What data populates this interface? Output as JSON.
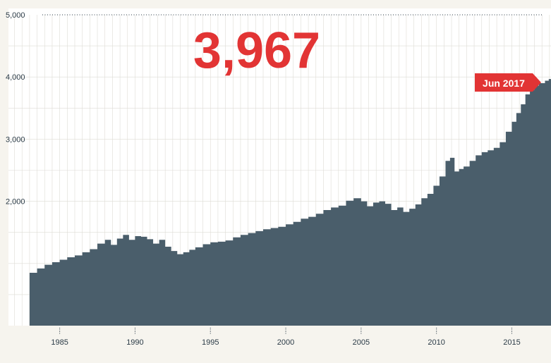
{
  "headline": "3,967",
  "badge_label": "Jun 2017",
  "colors": {
    "area": "#4a5e6b",
    "accent": "#e23434",
    "grid": "#dedcd5",
    "plot_bg": "#ffffff",
    "page_bg": "#f6f4ee"
  },
  "chart_data": {
    "type": "area",
    "title": "",
    "xlabel": "",
    "ylabel": "",
    "xlim": [
      1981.6,
      2017.6
    ],
    "ylim": [
      0,
      5000
    ],
    "grid": true,
    "y_ticks": [
      {
        "value": 2000,
        "label": "2,000"
      },
      {
        "value": 3000,
        "label": "3,000"
      },
      {
        "value": 4000,
        "label": "4,000"
      },
      {
        "value": 5000,
        "label": "5,000"
      }
    ],
    "x_ticks": [
      {
        "value": 1985,
        "label": "1985"
      },
      {
        "value": 1990,
        "label": "1990"
      },
      {
        "value": 1995,
        "label": "1995"
      },
      {
        "value": 2000,
        "label": "2000"
      },
      {
        "value": 2005,
        "label": "2005"
      },
      {
        "value": 2010,
        "label": "2010"
      },
      {
        "value": 2015,
        "label": "2015"
      }
    ],
    "series": [
      {
        "x": [
          1983.0,
          1983.5,
          1984.0,
          1984.5,
          1985.0,
          1985.5,
          1986.0,
          1986.5,
          1987.0,
          1987.5,
          1988.0,
          1988.4,
          1988.8,
          1989.2,
          1989.6,
          1990.0,
          1990.4,
          1990.8,
          1991.2,
          1991.6,
          1992.0,
          1992.4,
          1992.8,
          1993.2,
          1993.6,
          1994.0,
          1994.5,
          1995.0,
          1995.5,
          1996.0,
          1996.5,
          1997.0,
          1997.5,
          1998.0,
          1998.5,
          1999.0,
          1999.5,
          2000.0,
          2000.5,
          2001.0,
          2001.5,
          2002.0,
          2002.5,
          2003.0,
          2003.5,
          2004.0,
          2004.5,
          2005.0,
          2005.4,
          2005.8,
          2006.2,
          2006.6,
          2007.0,
          2007.4,
          2007.8,
          2008.2,
          2008.6,
          2009.0,
          2009.4,
          2009.8,
          2010.2,
          2010.6,
          2010.9,
          2011.2,
          2011.5,
          2011.8,
          2012.2,
          2012.6,
          2013.0,
          2013.4,
          2013.8,
          2014.2,
          2014.6,
          2015.0,
          2015.3,
          2015.6,
          2015.9,
          2016.2,
          2016.5,
          2016.8,
          2017.2,
          2017.45
        ],
        "values": [
          850,
          920,
          980,
          1020,
          1060,
          1100,
          1130,
          1180,
          1230,
          1320,
          1380,
          1300,
          1400,
          1460,
          1380,
          1440,
          1430,
          1390,
          1320,
          1380,
          1270,
          1200,
          1150,
          1180,
          1220,
          1260,
          1310,
          1340,
          1350,
          1370,
          1420,
          1460,
          1490,
          1520,
          1550,
          1570,
          1590,
          1630,
          1670,
          1720,
          1750,
          1800,
          1860,
          1900,
          1930,
          2010,
          2050,
          2000,
          1920,
          1980,
          2000,
          1960,
          1860,
          1900,
          1830,
          1880,
          1950,
          2050,
          2120,
          2250,
          2400,
          2650,
          2700,
          2480,
          2520,
          2560,
          2650,
          2740,
          2790,
          2820,
          2860,
          2950,
          3120,
          3280,
          3420,
          3560,
          3720,
          3790,
          3860,
          3900,
          3940,
          3967
        ]
      }
    ]
  }
}
